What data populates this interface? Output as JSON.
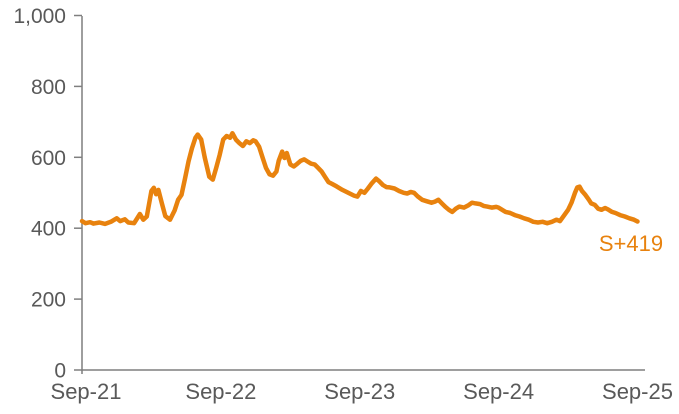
{
  "page": {
    "background": "#FFFFFF"
  },
  "colors": {
    "line": "#E8820E",
    "axis": "#7F7F7F",
    "tick_text": "#595959",
    "end_label_text": "#E8820E"
  },
  "chart_data": {
    "type": "line",
    "title": "",
    "xlabel": "",
    "ylabel": "",
    "grid": false,
    "legend": "none",
    "y_axis": {
      "min": 0,
      "max": 1000,
      "tick_values": [
        0,
        200,
        400,
        600,
        800,
        1000
      ],
      "tick_labels": [
        "0",
        "200",
        "400",
        "600",
        "800",
        "1,000"
      ]
    },
    "x_axis": {
      "tick_labels": [
        "Sep-21",
        "Sep-22",
        "Sep-23",
        "Sep-24",
        "Sep-25"
      ],
      "tick_month_offsets": [
        0,
        12,
        24,
        36,
        48
      ]
    },
    "series": [
      {
        "end_label": "S+419",
        "final_value": 419,
        "points_month_offset_value": [
          [
            0,
            420
          ],
          [
            0.3,
            414
          ],
          [
            0.7,
            417
          ],
          [
            1,
            413
          ],
          [
            1.5,
            416
          ],
          [
            2,
            412
          ],
          [
            2.5,
            418
          ],
          [
            3,
            428
          ],
          [
            3.3,
            420
          ],
          [
            3.7,
            425
          ],
          [
            4,
            416
          ],
          [
            4.5,
            414
          ],
          [
            5,
            440
          ],
          [
            5.3,
            424
          ],
          [
            5.6,
            433
          ],
          [
            6,
            505
          ],
          [
            6.2,
            514
          ],
          [
            6.4,
            496
          ],
          [
            6.6,
            508
          ],
          [
            6.9,
            470
          ],
          [
            7.2,
            434
          ],
          [
            7.6,
            424
          ],
          [
            8,
            450
          ],
          [
            8.3,
            480
          ],
          [
            8.6,
            494
          ],
          [
            8.9,
            540
          ],
          [
            9.2,
            588
          ],
          [
            9.5,
            625
          ],
          [
            9.8,
            655
          ],
          [
            10,
            664
          ],
          [
            10.3,
            650
          ],
          [
            10.6,
            600
          ],
          [
            11,
            545
          ],
          [
            11.3,
            537
          ],
          [
            11.6,
            570
          ],
          [
            11.9,
            607
          ],
          [
            12.2,
            650
          ],
          [
            12.5,
            660
          ],
          [
            12.8,
            655
          ],
          [
            13,
            668
          ],
          [
            13.3,
            650
          ],
          [
            13.6,
            640
          ],
          [
            13.9,
            632
          ],
          [
            14.2,
            645
          ],
          [
            14.5,
            640
          ],
          [
            14.8,
            648
          ],
          [
            15,
            645
          ],
          [
            15.3,
            630
          ],
          [
            15.6,
            600
          ],
          [
            15.9,
            570
          ],
          [
            16.2,
            552
          ],
          [
            16.5,
            548
          ],
          [
            16.8,
            560
          ],
          [
            17,
            590
          ],
          [
            17.3,
            616
          ],
          [
            17.5,
            598
          ],
          [
            17.7,
            612
          ],
          [
            18,
            580
          ],
          [
            18.3,
            574
          ],
          [
            18.6,
            582
          ],
          [
            18.9,
            590
          ],
          [
            19.2,
            594
          ],
          [
            19.5,
            588
          ],
          [
            19.8,
            582
          ],
          [
            20.1,
            580
          ],
          [
            20.4,
            570
          ],
          [
            20.7,
            560
          ],
          [
            21,
            545
          ],
          [
            21.3,
            530
          ],
          [
            21.6,
            525
          ],
          [
            22,
            518
          ],
          [
            22.5,
            508
          ],
          [
            23,
            500
          ],
          [
            23.5,
            492
          ],
          [
            23.8,
            489
          ],
          [
            24.1,
            505
          ],
          [
            24.4,
            500
          ],
          [
            24.7,
            512
          ],
          [
            25,
            525
          ],
          [
            25.4,
            540
          ],
          [
            25.7,
            532
          ],
          [
            26,
            522
          ],
          [
            26.3,
            516
          ],
          [
            26.6,
            515
          ],
          [
            27,
            512
          ],
          [
            27.4,
            505
          ],
          [
            27.8,
            500
          ],
          [
            28.1,
            498
          ],
          [
            28.4,
            502
          ],
          [
            28.7,
            500
          ],
          [
            29,
            490
          ],
          [
            29.4,
            480
          ],
          [
            29.8,
            476
          ],
          [
            30.2,
            472
          ],
          [
            30.5,
            475
          ],
          [
            30.8,
            480
          ],
          [
            31.1,
            470
          ],
          [
            31.4,
            460
          ],
          [
            31.7,
            452
          ],
          [
            32,
            446
          ],
          [
            32.3,
            455
          ],
          [
            32.6,
            461
          ],
          [
            33,
            458
          ],
          [
            33.4,
            465
          ],
          [
            33.7,
            472
          ],
          [
            34,
            470
          ],
          [
            34.4,
            468
          ],
          [
            34.7,
            463
          ],
          [
            35,
            461
          ],
          [
            35.4,
            458
          ],
          [
            35.8,
            460
          ],
          [
            36,
            458
          ],
          [
            36.3,
            452
          ],
          [
            36.6,
            446
          ],
          [
            37,
            443
          ],
          [
            37.4,
            437
          ],
          [
            37.8,
            433
          ],
          [
            38.2,
            428
          ],
          [
            38.6,
            424
          ],
          [
            39,
            418
          ],
          [
            39.4,
            416
          ],
          [
            39.8,
            418
          ],
          [
            40.2,
            414
          ],
          [
            40.6,
            418
          ],
          [
            41,
            424
          ],
          [
            41.3,
            420
          ],
          [
            41.7,
            438
          ],
          [
            42,
            452
          ],
          [
            42.3,
            472
          ],
          [
            42.6,
            500
          ],
          [
            42.8,
            515
          ],
          [
            43,
            517
          ],
          [
            43.2,
            505
          ],
          [
            43.5,
            494
          ],
          [
            43.8,
            480
          ],
          [
            44,
            470
          ],
          [
            44.3,
            466
          ],
          [
            44.6,
            455
          ],
          [
            44.9,
            452
          ],
          [
            45.2,
            457
          ],
          [
            45.5,
            452
          ],
          [
            45.8,
            446
          ],
          [
            46.1,
            443
          ],
          [
            46.5,
            437
          ],
          [
            46.9,
            433
          ],
          [
            47.3,
            428
          ],
          [
            47.7,
            424
          ],
          [
            48,
            419
          ]
        ]
      }
    ]
  }
}
